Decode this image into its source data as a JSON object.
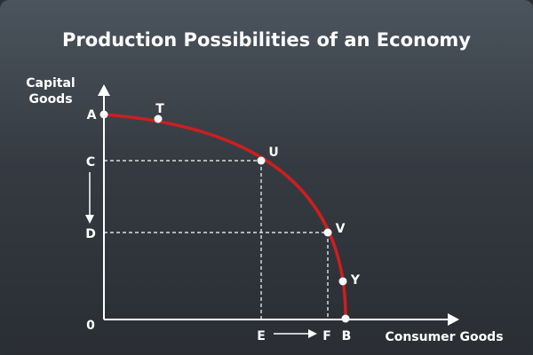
{
  "title": "Production Possibilities of an Economy",
  "y_axis_label": [
    "Capital",
    "Goods"
  ],
  "x_axis_label": "Consumer Goods",
  "point_labels": {
    "A": "A",
    "T": "T",
    "U": "U",
    "V": "V",
    "Y": "Y",
    "B": "B",
    "C": "C",
    "D": "D",
    "E": "E",
    "F": "F",
    "origin": "0"
  },
  "colors": {
    "curve": "#cc1f1f",
    "axes": "#ffffff",
    "points": "#ffffff",
    "text": "#ffffff"
  }
}
